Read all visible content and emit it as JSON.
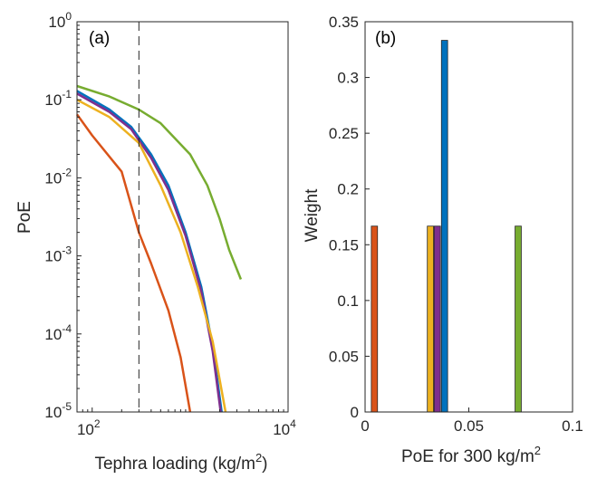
{
  "chart_data": [
    {
      "panel": "(a)",
      "type": "line",
      "xlabel": "Tephra loading",
      "xlabel_unit_base": "kg/m",
      "xlabel_unit_exp": "2",
      "ylabel": "PoE",
      "xscale": "log",
      "yscale": "log",
      "xlim": [
        70,
        10000
      ],
      "ylim": [
        1e-05,
        1
      ],
      "x_ticks": [
        {
          "base": "10",
          "exp": "2"
        },
        {
          "base": "10",
          "exp": "4"
        }
      ],
      "y_ticks": [
        {
          "base": "10",
          "exp": "0"
        },
        {
          "base": "10",
          "exp": "-1"
        },
        {
          "base": "10",
          "exp": "-2"
        },
        {
          "base": "10",
          "exp": "-3"
        },
        {
          "base": "10",
          "exp": "-4"
        },
        {
          "base": "10",
          "exp": "-5"
        }
      ],
      "vline": {
        "x": 300,
        "style": "dashed",
        "color": "#000000"
      },
      "series": [
        {
          "color": "#77AC30",
          "points": [
            [
              70,
              0.15
            ],
            [
              150,
              0.11
            ],
            [
              300,
              0.075
            ],
            [
              500,
              0.05
            ],
            [
              1000,
              0.02
            ],
            [
              1500,
              0.008
            ],
            [
              2000,
              0.003
            ],
            [
              2500,
              0.0012
            ],
            [
              3300,
              0.0005
            ]
          ]
        },
        {
          "color": "#0072BD",
          "points": [
            [
              70,
              0.13
            ],
            [
              150,
              0.075
            ],
            [
              250,
              0.045
            ],
            [
              400,
              0.02
            ],
            [
              600,
              0.008
            ],
            [
              900,
              0.002
            ],
            [
              1300,
              0.0004
            ],
            [
              1700,
              7e-05
            ],
            [
              2100,
              1e-05
            ]
          ]
        },
        {
          "color": "#7E2F8E",
          "points": [
            [
              70,
              0.12
            ],
            [
              150,
              0.07
            ],
            [
              250,
              0.042
            ],
            [
              400,
              0.018
            ],
            [
              600,
              0.007
            ],
            [
              900,
              0.0018
            ],
            [
              1300,
              0.00035
            ],
            [
              1700,
              6e-05
            ],
            [
              2050,
              1e-05
            ]
          ]
        },
        {
          "color": "#EDB120",
          "points": [
            [
              70,
              0.1
            ],
            [
              150,
              0.06
            ],
            [
              300,
              0.028
            ],
            [
              500,
              0.008
            ],
            [
              800,
              0.002
            ],
            [
              1200,
              0.0004
            ],
            [
              1700,
              8e-05
            ],
            [
              2300,
              1e-05
            ]
          ]
        },
        {
          "color": "#D95319",
          "points": [
            [
              70,
              0.065
            ],
            [
              100,
              0.035
            ],
            [
              200,
              0.012
            ],
            [
              300,
              0.002
            ],
            [
              400,
              0.0008
            ],
            [
              600,
              0.0002
            ],
            [
              800,
              5e-05
            ],
            [
              1000,
              1e-05
            ]
          ]
        }
      ]
    },
    {
      "panel": "(b)",
      "type": "bar",
      "xlabel": "PoE for 300",
      "xlabel_unit_base": "kg/m",
      "xlabel_unit_exp": "2",
      "ylabel": "Weight",
      "xlim": [
        0,
        0.1
      ],
      "ylim": [
        0,
        0.35
      ],
      "x_ticks": [
        "0",
        "0.05",
        "0.1"
      ],
      "y_ticks": [
        "0",
        "0.05",
        "0.1",
        "0.15",
        "0.2",
        "0.25",
        "0.3",
        "0.35"
      ],
      "bar_width": 0.003,
      "bars": [
        {
          "x": 0.0045,
          "value": 0.1667,
          "color": "#D95319"
        },
        {
          "x": 0.0315,
          "value": 0.1667,
          "color": "#EDB120"
        },
        {
          "x": 0.0348,
          "value": 0.1667,
          "color": "#7E2F8E"
        },
        {
          "x": 0.0383,
          "value": 0.3333,
          "color": "#0072BD"
        },
        {
          "x": 0.0738,
          "value": 0.1667,
          "color": "#77AC30"
        }
      ]
    }
  ]
}
